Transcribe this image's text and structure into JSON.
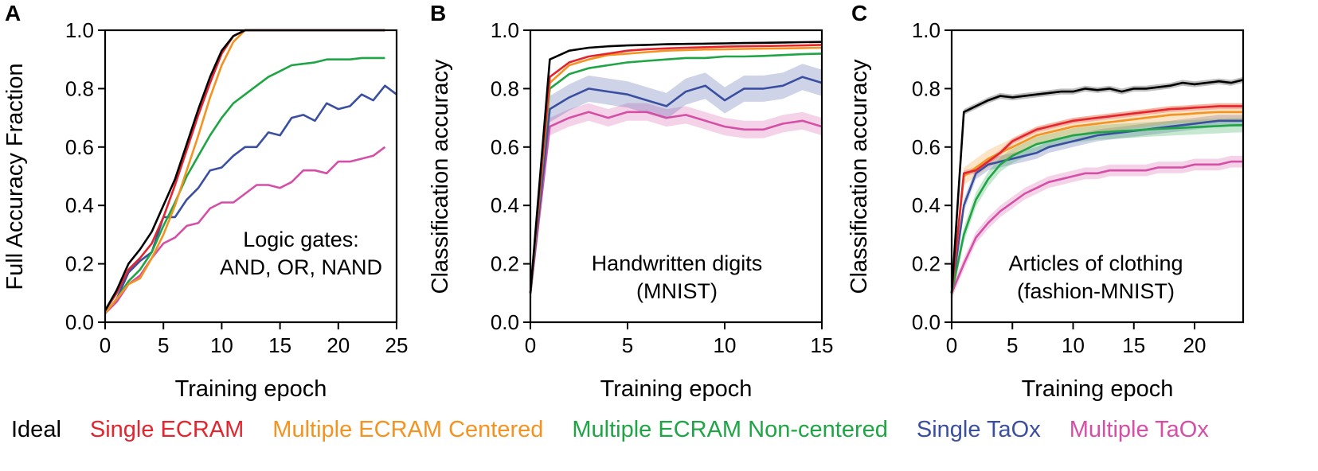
{
  "colors": {
    "ideal": "#000000",
    "single_ecram": "#e3252f",
    "multi_centered": "#f39321",
    "multi_noncentered": "#1fa545",
    "single_taox": "#3a4fa0",
    "multi_taox": "#d54fa6",
    "axis": "#000000"
  },
  "legend": {
    "items": [
      {
        "key": "ideal",
        "label": "Ideal"
      },
      {
        "key": "single_ecram",
        "label": "Single ECRAM"
      },
      {
        "key": "multi_centered",
        "label": "Multiple ECRAM Centered"
      },
      {
        "key": "multi_noncentered",
        "label": "Multiple ECRAM Non-centered"
      },
      {
        "key": "single_taox",
        "label": "Single TaOx"
      },
      {
        "key": "multi_taox",
        "label": "Multiple TaOx"
      }
    ]
  },
  "chart_data": [
    {
      "panel": "A",
      "type": "line",
      "xlabel": "Training epoch",
      "ylabel": "Full Accuracy Fraction",
      "annotation": [
        "Logic gates:",
        "AND, OR, NAND"
      ],
      "xlim": [
        0,
        25
      ],
      "ylim": [
        0,
        1.0
      ],
      "xticks": [
        0,
        5,
        10,
        15,
        20,
        25
      ],
      "yticks": [
        0.0,
        0.2,
        0.4,
        0.6,
        0.8,
        1.0
      ],
      "xtick_labels": [
        "0",
        "5",
        "10",
        "15",
        "20",
        "25"
      ],
      "ytick_labels": [
        "0.0",
        "0.2",
        "0.4",
        "0.6",
        "0.8",
        "1.0"
      ],
      "series": [
        {
          "key": "multi_taox",
          "x": [
            0,
            1,
            2,
            3,
            4,
            5,
            6,
            7,
            8,
            9,
            10,
            11,
            12,
            13,
            14,
            15,
            16,
            17,
            18,
            19,
            20,
            21,
            22,
            23,
            24
          ],
          "y": [
            0.03,
            0.07,
            0.13,
            0.16,
            0.22,
            0.27,
            0.29,
            0.33,
            0.34,
            0.39,
            0.41,
            0.41,
            0.44,
            0.47,
            0.47,
            0.46,
            0.48,
            0.52,
            0.52,
            0.51,
            0.55,
            0.55,
            0.56,
            0.57,
            0.6
          ]
        },
        {
          "key": "single_taox",
          "x": [
            0,
            1,
            2,
            3,
            4,
            5,
            6,
            7,
            8,
            9,
            10,
            11,
            12,
            13,
            14,
            15,
            16,
            17,
            18,
            19,
            20,
            21,
            22,
            23,
            24,
            25
          ],
          "y": [
            0.03,
            0.08,
            0.17,
            0.21,
            0.24,
            0.36,
            0.36,
            0.42,
            0.46,
            0.52,
            0.53,
            0.57,
            0.6,
            0.6,
            0.65,
            0.64,
            0.7,
            0.71,
            0.69,
            0.75,
            0.73,
            0.74,
            0.78,
            0.76,
            0.81,
            0.78
          ]
        },
        {
          "key": "multi_noncentered",
          "x": [
            0,
            1,
            2,
            3,
            4,
            5,
            6,
            7,
            8,
            9,
            10,
            11,
            12,
            13,
            14,
            15,
            16,
            17,
            18,
            19,
            20,
            21,
            22,
            23,
            24
          ],
          "y": [
            0.03,
            0.08,
            0.14,
            0.18,
            0.24,
            0.33,
            0.41,
            0.5,
            0.57,
            0.64,
            0.7,
            0.75,
            0.78,
            0.81,
            0.84,
            0.86,
            0.88,
            0.885,
            0.89,
            0.9,
            0.9,
            0.9,
            0.905,
            0.905,
            0.905
          ]
        },
        {
          "key": "multi_centered",
          "x": [
            0,
            1,
            2,
            3,
            4,
            5,
            6,
            7,
            8,
            9,
            10,
            11,
            12,
            13,
            14,
            15,
            16,
            17,
            18,
            19,
            20,
            21,
            22,
            23,
            24
          ],
          "y": [
            0.03,
            0.08,
            0.13,
            0.15,
            0.22,
            0.3,
            0.4,
            0.52,
            0.64,
            0.77,
            0.88,
            0.96,
            1.0,
            1.0,
            1.0,
            1.0,
            1.0,
            1.0,
            1.0,
            1.0,
            1.0,
            1.0,
            1.0,
            1.0,
            1.0
          ]
        },
        {
          "key": "single_ecram",
          "x": [
            0,
            1,
            2,
            3,
            4,
            5,
            6,
            7,
            8,
            9,
            10,
            11,
            12,
            13,
            14,
            15,
            16,
            17,
            18,
            19,
            20,
            21,
            22,
            23,
            24
          ],
          "y": [
            0.04,
            0.1,
            0.18,
            0.22,
            0.27,
            0.36,
            0.47,
            0.59,
            0.71,
            0.82,
            0.92,
            0.98,
            1.0,
            1.0,
            1.0,
            1.0,
            1.0,
            1.0,
            1.0,
            1.0,
            1.0,
            1.0,
            1.0,
            1.0,
            1.0
          ]
        },
        {
          "key": "ideal",
          "x": [
            0,
            1,
            2,
            3,
            4,
            5,
            6,
            7,
            8,
            9,
            10,
            11,
            12,
            13,
            14,
            15,
            16,
            17,
            18,
            19,
            20,
            21,
            22,
            23,
            24
          ],
          "y": [
            0.04,
            0.11,
            0.2,
            0.25,
            0.31,
            0.4,
            0.49,
            0.61,
            0.73,
            0.84,
            0.93,
            0.98,
            1.0,
            1.0,
            1.0,
            1.0,
            1.0,
            1.0,
            1.0,
            1.0,
            1.0,
            1.0,
            1.0,
            1.0,
            1.0
          ]
        }
      ]
    },
    {
      "panel": "B",
      "type": "line",
      "xlabel": "Training epoch",
      "ylabel": "Classification accuracy",
      "annotation": [
        "Handwritten digits",
        "(MNIST)"
      ],
      "xlim": [
        0,
        15
      ],
      "ylim": [
        0,
        1.0
      ],
      "xticks": [
        0,
        5,
        10,
        15
      ],
      "yticks": [
        0.0,
        0.2,
        0.4,
        0.6,
        0.8,
        1.0
      ],
      "xtick_labels": [
        "0",
        "5",
        "10",
        "15"
      ],
      "ytick_labels": [
        "0.0",
        "0.2",
        "0.4",
        "0.6",
        "0.8",
        "1.0"
      ],
      "series": [
        {
          "key": "multi_taox",
          "x": [
            0,
            1,
            2,
            3,
            4,
            5,
            6,
            7,
            8,
            9,
            10,
            11,
            12,
            13,
            14,
            15
          ],
          "y": [
            0.1,
            0.67,
            0.7,
            0.72,
            0.7,
            0.72,
            0.72,
            0.7,
            0.71,
            0.69,
            0.67,
            0.66,
            0.66,
            0.68,
            0.69,
            0.67
          ],
          "band": 0.03
        },
        {
          "key": "single_taox",
          "x": [
            0,
            1,
            2,
            3,
            4,
            5,
            6,
            7,
            8,
            9,
            10,
            11,
            12,
            13,
            14,
            15
          ],
          "y": [
            0.1,
            0.73,
            0.77,
            0.8,
            0.79,
            0.78,
            0.76,
            0.74,
            0.79,
            0.81,
            0.76,
            0.8,
            0.8,
            0.81,
            0.84,
            0.82
          ],
          "band": 0.045
        },
        {
          "key": "multi_noncentered",
          "x": [
            0,
            1,
            2,
            3,
            4,
            5,
            6,
            7,
            8,
            9,
            10,
            11,
            12,
            13,
            14,
            15
          ],
          "y": [
            0.1,
            0.8,
            0.85,
            0.87,
            0.88,
            0.89,
            0.895,
            0.9,
            0.905,
            0.905,
            0.91,
            0.91,
            0.912,
            0.915,
            0.918,
            0.92
          ]
        },
        {
          "key": "multi_centered",
          "x": [
            0,
            1,
            2,
            3,
            4,
            5,
            6,
            7,
            8,
            9,
            10,
            11,
            12,
            13,
            14,
            15
          ],
          "y": [
            0.1,
            0.82,
            0.88,
            0.9,
            0.915,
            0.92,
            0.925,
            0.93,
            0.932,
            0.934,
            0.935,
            0.936,
            0.937,
            0.938,
            0.939,
            0.94
          ]
        },
        {
          "key": "single_ecram",
          "x": [
            0,
            1,
            2,
            3,
            4,
            5,
            6,
            7,
            8,
            9,
            10,
            11,
            12,
            13,
            14,
            15
          ],
          "y": [
            0.1,
            0.84,
            0.89,
            0.91,
            0.92,
            0.93,
            0.935,
            0.938,
            0.94,
            0.942,
            0.944,
            0.945,
            0.946,
            0.947,
            0.948,
            0.95
          ]
        },
        {
          "key": "ideal",
          "x": [
            0,
            1,
            2,
            3,
            4,
            5,
            6,
            7,
            8,
            9,
            10,
            11,
            12,
            13,
            14,
            15
          ],
          "y": [
            0.1,
            0.9,
            0.93,
            0.94,
            0.945,
            0.948,
            0.95,
            0.952,
            0.953,
            0.954,
            0.955,
            0.956,
            0.957,
            0.958,
            0.959,
            0.96
          ]
        }
      ]
    },
    {
      "panel": "C",
      "type": "line",
      "xlabel": "Training epoch",
      "ylabel": "Classification accuracy",
      "annotation": [
        "Articles of clothing",
        "(fashion-MNIST)"
      ],
      "xlim": [
        0,
        24
      ],
      "ylim": [
        0,
        1.0
      ],
      "xticks": [
        0,
        5,
        10,
        15,
        20
      ],
      "yticks": [
        0.0,
        0.2,
        0.4,
        0.6,
        0.8,
        1.0
      ],
      "xtick_labels": [
        "0",
        "5",
        "10",
        "15",
        "20"
      ],
      "ytick_labels": [
        "0.0",
        "0.2",
        "0.4",
        "0.6",
        "0.8",
        "1.0"
      ],
      "series": [
        {
          "key": "multi_taox",
          "x": [
            0,
            1,
            2,
            3,
            4,
            5,
            6,
            7,
            8,
            9,
            10,
            11,
            12,
            13,
            14,
            15,
            16,
            17,
            18,
            19,
            20,
            21,
            22,
            23,
            24
          ],
          "y": [
            0.1,
            0.2,
            0.29,
            0.34,
            0.38,
            0.41,
            0.44,
            0.46,
            0.48,
            0.49,
            0.5,
            0.51,
            0.51,
            0.52,
            0.52,
            0.52,
            0.52,
            0.53,
            0.53,
            0.53,
            0.54,
            0.54,
            0.54,
            0.55,
            0.55
          ],
          "band": 0.02
        },
        {
          "key": "single_taox",
          "x": [
            0,
            1,
            2,
            3,
            4,
            5,
            6,
            7,
            8,
            9,
            10,
            11,
            12,
            13,
            14,
            15,
            16,
            17,
            18,
            19,
            20,
            21,
            22,
            23,
            24
          ],
          "y": [
            0.1,
            0.4,
            0.51,
            0.54,
            0.55,
            0.56,
            0.57,
            0.58,
            0.6,
            0.61,
            0.62,
            0.63,
            0.64,
            0.645,
            0.65,
            0.655,
            0.66,
            0.665,
            0.67,
            0.675,
            0.68,
            0.685,
            0.69,
            0.69,
            0.69
          ],
          "band": 0.02
        },
        {
          "key": "multi_noncentered",
          "x": [
            0,
            1,
            2,
            3,
            4,
            5,
            6,
            7,
            8,
            9,
            10,
            11,
            12,
            13,
            14,
            15,
            16,
            17,
            18,
            19,
            20,
            21,
            22,
            23,
            24
          ],
          "y": [
            0.1,
            0.3,
            0.42,
            0.49,
            0.54,
            0.57,
            0.59,
            0.61,
            0.62,
            0.63,
            0.64,
            0.645,
            0.65,
            0.652,
            0.655,
            0.657,
            0.66,
            0.662,
            0.664,
            0.666,
            0.668,
            0.67,
            0.672,
            0.674,
            0.675
          ],
          "band": 0.025
        },
        {
          "key": "multi_centered",
          "x": [
            0,
            1,
            2,
            3,
            4,
            5,
            6,
            7,
            8,
            9,
            10,
            11,
            12,
            13,
            14,
            15,
            16,
            17,
            18,
            19,
            20,
            21,
            22,
            23,
            24
          ],
          "y": [
            0.1,
            0.5,
            0.53,
            0.56,
            0.58,
            0.6,
            0.62,
            0.64,
            0.65,
            0.66,
            0.67,
            0.675,
            0.68,
            0.685,
            0.69,
            0.695,
            0.7,
            0.705,
            0.71,
            0.712,
            0.715,
            0.718,
            0.72,
            0.72,
            0.72
          ],
          "band": 0.03
        },
        {
          "key": "single_ecram",
          "x": [
            0,
            1,
            2,
            3,
            4,
            5,
            6,
            7,
            8,
            9,
            10,
            11,
            12,
            13,
            14,
            15,
            16,
            17,
            18,
            19,
            20,
            21,
            22,
            23,
            24
          ],
          "y": [
            0.1,
            0.51,
            0.52,
            0.55,
            0.58,
            0.62,
            0.64,
            0.66,
            0.67,
            0.68,
            0.69,
            0.695,
            0.7,
            0.705,
            0.71,
            0.715,
            0.72,
            0.725,
            0.73,
            0.732,
            0.735,
            0.737,
            0.74,
            0.74,
            0.74
          ],
          "band": 0.01
        },
        {
          "key": "ideal",
          "x": [
            0,
            1,
            2,
            3,
            4,
            5,
            6,
            7,
            8,
            9,
            10,
            11,
            12,
            13,
            14,
            15,
            16,
            17,
            18,
            19,
            20,
            21,
            22,
            23,
            24
          ],
          "y": [
            0.1,
            0.72,
            0.74,
            0.76,
            0.775,
            0.77,
            0.775,
            0.78,
            0.785,
            0.79,
            0.79,
            0.8,
            0.795,
            0.8,
            0.79,
            0.8,
            0.8,
            0.805,
            0.81,
            0.82,
            0.815,
            0.82,
            0.825,
            0.82,
            0.83
          ],
          "band": 0.01
        }
      ]
    }
  ],
  "panels": [
    {
      "letter": "A",
      "xlabel": "Training epoch",
      "ylabel": "Full Accuracy Fraction"
    },
    {
      "letter": "B",
      "xlabel": "Training epoch",
      "ylabel": "Classification accuracy"
    },
    {
      "letter": "C",
      "xlabel": "Training epoch",
      "ylabel": "Classification accuracy"
    }
  ]
}
